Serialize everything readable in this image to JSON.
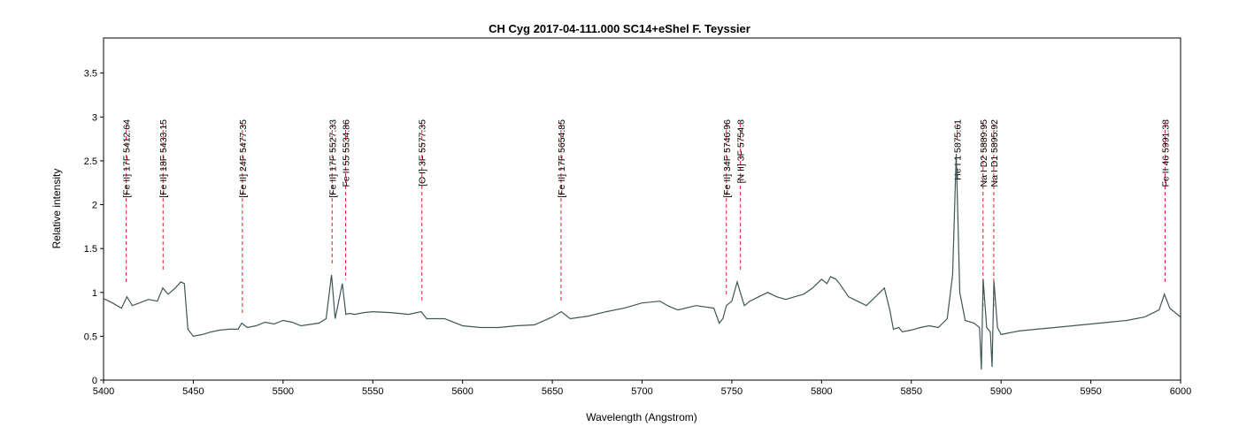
{
  "chart_data": {
    "type": "line",
    "title": "CH Cyg  2017-04-111.000  SC14+eShel F. Teyssier",
    "xlabel": "Wavelength (Angstrom)",
    "ylabel": "Relative intensity",
    "xlim": [
      5400,
      6000
    ],
    "ylim": [
      0,
      3.9
    ],
    "xticks": [
      5400,
      5450,
      5500,
      5550,
      5600,
      5650,
      5700,
      5750,
      5800,
      5850,
      5900,
      5950,
      6000
    ],
    "yticks": [
      0,
      0.5,
      1,
      1.5,
      2,
      2.5,
      3,
      3.5
    ],
    "ytick_labels": [
      "0",
      "0.5",
      "1",
      "1.5",
      "2",
      "2.5",
      "3",
      "3.5"
    ],
    "grid": false,
    "line_color": "#3d5656",
    "marker_color": "#e02020",
    "series": [
      {
        "x": [
          5400,
          5405,
          5410,
          5413,
          5416,
          5420,
          5425,
          5430,
          5433,
          5436,
          5440,
          5443,
          5445,
          5447,
          5450,
          5455,
          5460,
          5465,
          5470,
          5475,
          5477,
          5480,
          5485,
          5490,
          5495,
          5500,
          5505,
          5510,
          5520,
          5524,
          5527,
          5529,
          5533,
          5535,
          5537,
          5540,
          5545,
          5550,
          5560,
          5570,
          5577,
          5580,
          5590,
          5600,
          5610,
          5620,
          5630,
          5640,
          5650,
          5655,
          5660,
          5670,
          5680,
          5690,
          5700,
          5710,
          5715,
          5720,
          5730,
          5740,
          5743,
          5745,
          5747,
          5750,
          5753,
          5755,
          5757,
          5760,
          5765,
          5770,
          5775,
          5780,
          5785,
          5790,
          5795,
          5800,
          5803,
          5805,
          5808,
          5810,
          5815,
          5820,
          5825,
          5830,
          5835,
          5838,
          5840,
          5843,
          5845,
          5850,
          5855,
          5860,
          5865,
          5870,
          5873,
          5875,
          5877,
          5880,
          5885,
          5888,
          5889,
          5890,
          5892,
          5894,
          5895,
          5896,
          5898,
          5900,
          5905,
          5910,
          5920,
          5930,
          5940,
          5950,
          5960,
          5970,
          5980,
          5988,
          5991,
          5994,
          6000
        ],
        "y": [
          0.93,
          0.88,
          0.82,
          0.95,
          0.85,
          0.88,
          0.92,
          0.9,
          1.05,
          0.98,
          1.05,
          1.12,
          1.1,
          0.58,
          0.5,
          0.52,
          0.55,
          0.57,
          0.58,
          0.58,
          0.65,
          0.6,
          0.62,
          0.66,
          0.64,
          0.68,
          0.66,
          0.62,
          0.65,
          0.7,
          1.2,
          0.7,
          1.1,
          0.75,
          0.76,
          0.75,
          0.77,
          0.78,
          0.77,
          0.75,
          0.78,
          0.7,
          0.7,
          0.62,
          0.6,
          0.6,
          0.62,
          0.63,
          0.72,
          0.78,
          0.7,
          0.73,
          0.78,
          0.82,
          0.88,
          0.9,
          0.84,
          0.8,
          0.85,
          0.82,
          0.65,
          0.7,
          0.85,
          0.9,
          1.12,
          0.98,
          0.85,
          0.9,
          0.95,
          1.0,
          0.95,
          0.92,
          0.95,
          0.98,
          1.05,
          1.15,
          1.1,
          1.18,
          1.15,
          1.1,
          0.95,
          0.9,
          0.85,
          0.95,
          1.05,
          0.8,
          0.58,
          0.6,
          0.55,
          0.57,
          0.6,
          0.62,
          0.6,
          0.7,
          1.2,
          2.58,
          1.0,
          0.68,
          0.65,
          0.6,
          0.12,
          1.15,
          0.6,
          0.55,
          0.15,
          1.13,
          0.6,
          0.52,
          0.54,
          0.56,
          0.58,
          0.6,
          0.62,
          0.64,
          0.66,
          0.68,
          0.72,
          0.8,
          0.98,
          0.82,
          0.72
        ]
      }
    ],
    "lines": [
      {
        "wl": 5412.64,
        "label": "[Fe II] 17F 5412.64",
        "y_bottom": 1.1
      },
      {
        "wl": 5433.15,
        "label": "[Fe II] 18F 5433.15",
        "y_bottom": 1.25
      },
      {
        "wl": 5477.35,
        "label": "[Fe II] 24F 5477.35",
        "y_bottom": 0.75
      },
      {
        "wl": 5527.33,
        "label": "[Fe II] 17F 5527.33",
        "y_bottom": 1.3
      },
      {
        "wl": 5534.86,
        "label": "Fe II 55 5534.86",
        "y_bottom": 1.15
      },
      {
        "wl": 5577.35,
        "label": "[O I] 3F 5577.35",
        "y_bottom": 0.9
      },
      {
        "wl": 5654.85,
        "label": "[Fe II] 17F 5654.85",
        "y_bottom": 0.88
      },
      {
        "wl": 5746.96,
        "label": "[Fe II] 34F 5746.96",
        "y_bottom": 0.95
      },
      {
        "wl": 5754.8,
        "label": "[N II] 3F 5754.8",
        "y_bottom": 1.25
      },
      {
        "wl": 5875.61,
        "label": "He I 1 5875.61",
        "y_bottom": 2.7
      },
      {
        "wl": 5889.95,
        "label": "Na I D2 5889.95",
        "y_bottom": 0.8
      },
      {
        "wl": 5895.92,
        "label": "Na I D1 5895.92",
        "y_bottom": 0.8
      },
      {
        "wl": 5991.38,
        "label": "Fe II 46 5991.38",
        "y_bottom": 1.1
      }
    ]
  }
}
